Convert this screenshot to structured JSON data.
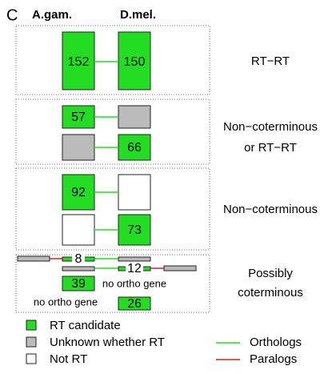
{
  "panel": "C",
  "header": {
    "left": "A.gam.",
    "right": "D.mel."
  },
  "groups": [
    {
      "label": [
        "RT−RT"
      ],
      "left": [
        "152"
      ],
      "right": [
        "150"
      ]
    },
    {
      "label": [
        "Non−coterminous",
        "or RT−RT"
      ],
      "left": [
        "57"
      ],
      "right": [
        "66"
      ]
    },
    {
      "label": [
        "Non−coterminous"
      ],
      "left": [
        "92"
      ],
      "right": [
        "73"
      ]
    },
    {
      "label": [
        "Possibly",
        "coterminous"
      ],
      "left": [
        "8",
        "39"
      ],
      "right": [
        "12",
        "26"
      ],
      "notes": [
        "no ortho gene",
        "no ortho gene"
      ]
    }
  ],
  "legend": {
    "boxes": [
      "RT candidate",
      "Unknown whether RT",
      "Not RT"
    ],
    "lines": [
      "Orthologs",
      "Paralogs"
    ]
  }
}
